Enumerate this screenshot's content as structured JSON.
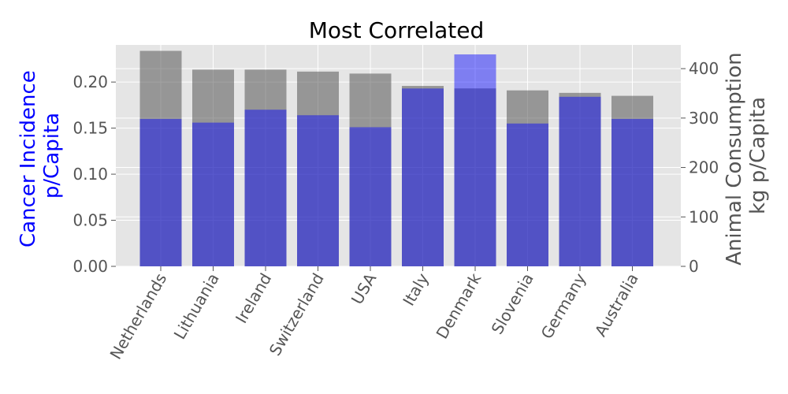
{
  "chart_data": {
    "type": "bar",
    "title": "Most Correlated",
    "categories": [
      "Netherlands",
      "Lithuania",
      "Ireland",
      "Switzerland",
      "USA",
      "Italy",
      "Denmark",
      "Slovenia",
      "Germany",
      "Australia"
    ],
    "series": [
      {
        "name": "Cancer Incidence p/Capita",
        "axis": "left",
        "color": "#0000ff",
        "opacity": 0.45,
        "values": [
          0.16,
          0.156,
          0.17,
          0.164,
          0.151,
          0.193,
          0.23,
          0.155,
          0.184,
          0.16
        ]
      },
      {
        "name": "Animal Consumption kg p/Capita",
        "axis": "right",
        "color": "#555555",
        "opacity": 0.55,
        "values": [
          436,
          398,
          398,
          394,
          390,
          365,
          360,
          356,
          351,
          345
        ]
      }
    ],
    "y_left": {
      "label_lines": [
        "Cancer Incidence",
        "p/Capita"
      ],
      "range": [
        0,
        0.2403
      ],
      "ticks": [
        "0.00",
        "0.05",
        "0.10",
        "0.15",
        "0.20"
      ],
      "color": "#0000ff"
    },
    "y_right": {
      "label_lines": [
        "Animal Consumption",
        "kg p/Capita"
      ],
      "range": [
        0,
        448
      ],
      "ticks": [
        "0",
        "100",
        "200",
        "300",
        "400"
      ],
      "color": "#555555"
    },
    "grid": true,
    "background": "#e5e5e5",
    "grid_color": "#ffffff"
  }
}
